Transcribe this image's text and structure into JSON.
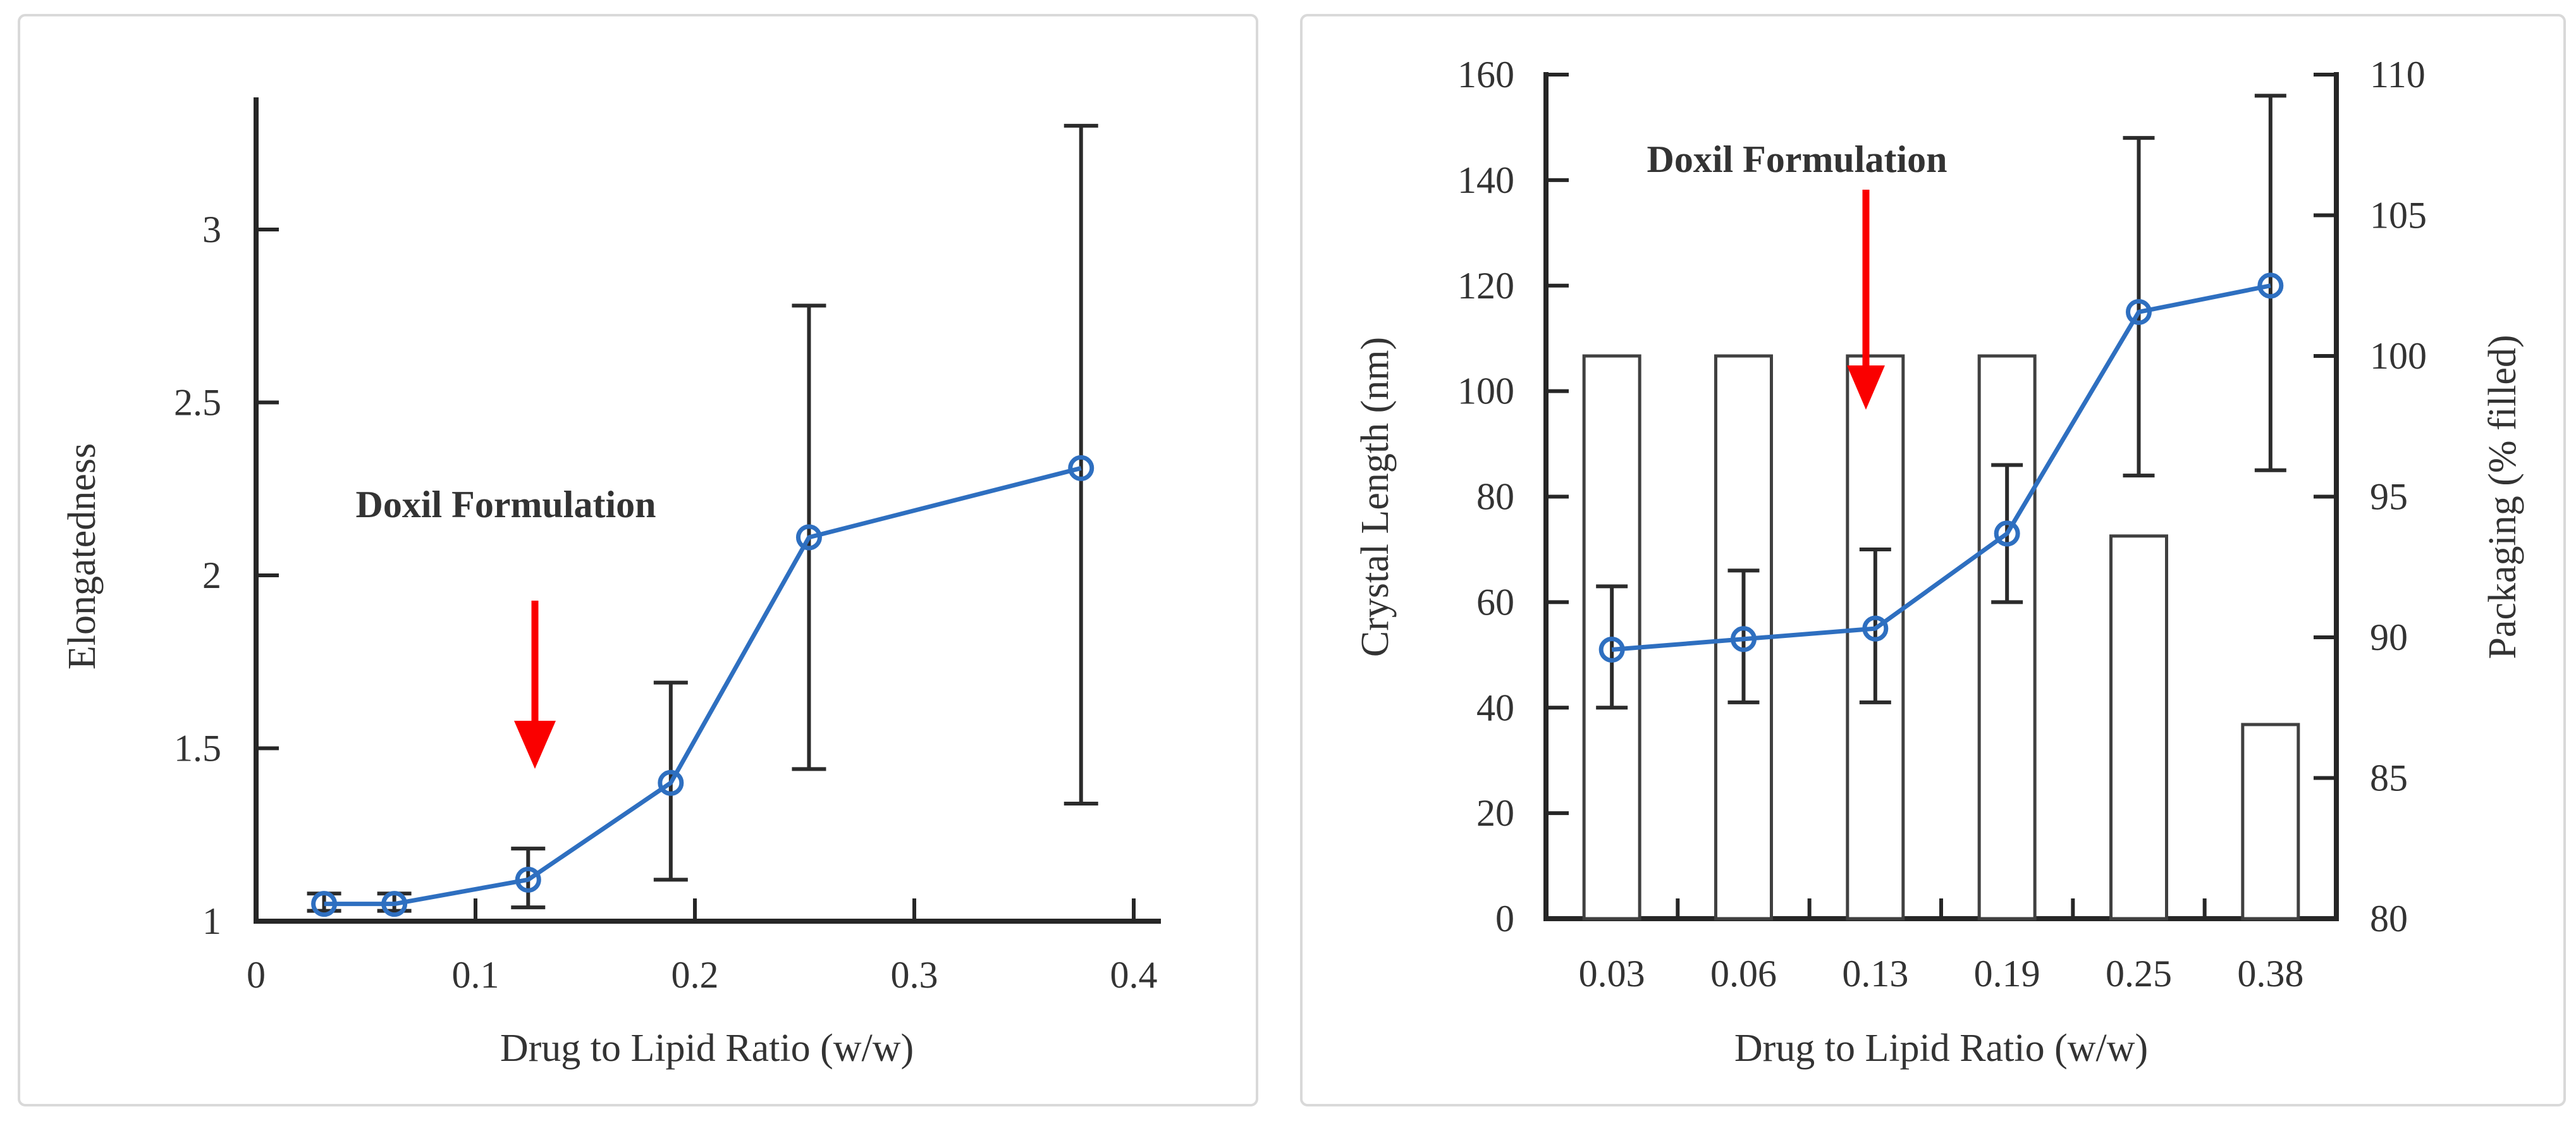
{
  "figure": {
    "description_left": "Elongatedness vs Drug to Lipid Ratio line chart with error bars",
    "description_right": "Crystal Length and Packaging vs Drug to Lipid Ratio combination bar and line chart"
  },
  "colors": {
    "line_blue": "#2E6FC0",
    "annotation_red": "#FA0000",
    "axis": "#262626",
    "error_bar": "#2B2B2B",
    "bar_outline": "#404040",
    "panel_border": "#D9D9D9",
    "background": "#FFFFFF"
  },
  "chart_data": [
    {
      "type": "line",
      "title": "",
      "xlabel": "Drug to Lipid Ratio (w/w)",
      "ylabel": "Elongatedness",
      "x": [
        0.031,
        0.063,
        0.124,
        0.189,
        0.252,
        0.376
      ],
      "y": [
        1.05,
        1.05,
        1.12,
        1.4,
        2.11,
        2.31
      ],
      "err_low": [
        1.03,
        1.03,
        1.04,
        1.12,
        1.44,
        1.34
      ],
      "err_high": [
        1.08,
        1.08,
        1.21,
        1.69,
        2.78,
        3.3
      ],
      "xticks": [
        0,
        0.1,
        0.2,
        0.3,
        0.4
      ],
      "yticks": [
        1,
        1.5,
        2,
        2.5,
        3
      ],
      "xlim": [
        0,
        0.413
      ],
      "ylim": [
        1,
        3.37
      ],
      "grid": false,
      "legend": null,
      "annotation": {
        "text": "Doxil Formulation",
        "color": "#FA0000",
        "points_to_x": 0.13
      }
    },
    {
      "type": "bar+line",
      "title": "",
      "xlabel": "Drug to Lipid Ratio (w/w)",
      "ylabel_left": "Crystal Length (nm)",
      "ylabel_right": "Packaging (% filled)",
      "categories": [
        "0.03",
        "0.06",
        "0.13",
        "0.19",
        "0.25",
        "0.38"
      ],
      "series": [
        {
          "name": "Packaging (% filled)",
          "type": "bar",
          "axis": "right",
          "values": [
            100,
            100,
            100,
            100,
            93.6,
            86.9
          ]
        },
        {
          "name": "Crystal Length (nm)",
          "type": "line",
          "axis": "left",
          "values": [
            51,
            53,
            55,
            73,
            115,
            120
          ],
          "err_low": [
            40,
            41,
            41,
            60,
            84,
            85
          ],
          "err_high": [
            63,
            66,
            70,
            86,
            148,
            156
          ]
        }
      ],
      "yticks_left": [
        0,
        20,
        40,
        60,
        80,
        100,
        120,
        140,
        160
      ],
      "yticks_right": [
        80,
        85,
        90,
        95,
        100,
        105,
        110
      ],
      "ylim_left": [
        0,
        160
      ],
      "ylim_right": [
        80,
        110
      ],
      "grid": false,
      "legend": null,
      "annotation": {
        "text": "Doxil Formulation",
        "color": "#FA0000",
        "points_to_category": "0.13"
      }
    }
  ]
}
